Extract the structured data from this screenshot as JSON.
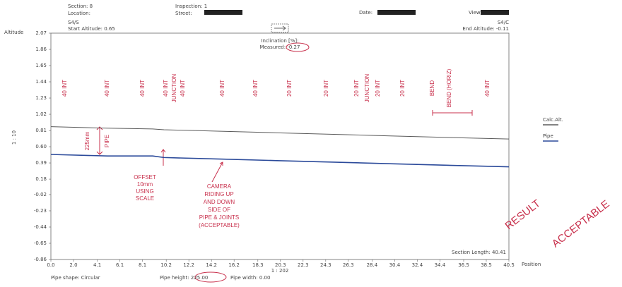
{
  "chart_data": {
    "type": "line",
    "header": {
      "section": "Section: 8",
      "location": "Location:",
      "inspection": "Inspection: 1",
      "street": "Street:",
      "date": "Date:",
      "view": "View:"
    },
    "start_node": "S4/S",
    "start_altitude": "Start Altitude: 0.65",
    "end_node": "S4/C",
    "end_altitude": "End Altitude: -0.11",
    "inclination_label": "Inclination [%]:",
    "measured": "Measured: -0.27",
    "y_label": "Altitude",
    "scale_label": "1 : 10",
    "x_label": "Position",
    "x_scale": "1 : 202",
    "section_length": "Section Length: 40.41",
    "footer": {
      "shape": "Pipe shape: Circular",
      "height": "Pipe height: 225.00",
      "width": "Pipe width: 0.00"
    },
    "x": [
      0,
      5,
      9,
      10,
      15,
      20,
      25,
      30,
      35,
      40.5
    ],
    "series": [
      {
        "name": "Calc.Alt.",
        "color": "#5a5a5a",
        "values": [
          0.86,
          0.84,
          0.83,
          0.82,
          0.8,
          0.78,
          0.76,
          0.74,
          0.72,
          0.7
        ]
      },
      {
        "name": "Pipe",
        "color": "#2b4a9a",
        "values": [
          0.5,
          0.48,
          0.48,
          0.46,
          0.44,
          0.42,
          0.4,
          0.38,
          0.36,
          0.34
        ]
      }
    ],
    "xlim": [
      0,
      40.5
    ],
    "xticks": [
      {
        "value": 0,
        "label": "0.0"
      },
      {
        "value": 2,
        "label": "2.0"
      },
      4.1,
      6.1,
      8.1,
      10.2,
      12.2,
      14.2,
      16.2,
      18.3,
      20.3,
      22.3,
      24.3,
      26.3,
      28.4,
      30.4,
      32.4,
      34.4,
      36.5,
      38.5,
      40.5
    ],
    "ylim": [
      -0.86,
      2.07
    ],
    "yticks": [
      2.07,
      1.86,
      1.65,
      1.44,
      1.23,
      1.02,
      0.81,
      {
        "value": 0.6,
        "label": "0.60"
      },
      0.39,
      0.18,
      -0.02,
      -0.23,
      -0.44,
      -0.65,
      -0.86
    ],
    "grid": false,
    "legend": "right",
    "vertical_notes": [
      "40 INT",
      "40 INT",
      "40 INT",
      "40 INT",
      "JUNCTION",
      "40 INT",
      "40 INT",
      "40 INT",
      "20 INT",
      "20 INT",
      "20 INT",
      "JUNCTION",
      "20 INT",
      "20 INT",
      "BEND",
      "BEND (HORIZ)",
      "40 INT"
    ],
    "notes": {
      "depth": "225mm",
      "pipe": "PIPE",
      "offset": [
        "OFFSET",
        "10mm",
        "USING",
        "SCALE"
      ],
      "camera": [
        "CAMERA",
        "RIDING UP",
        "AND DOWN",
        "SIDE OF",
        "PIPE & JOINTS",
        "(ACCEPTABLE)"
      ],
      "result": "RESULT",
      "acceptable": "ACCEPTABLE"
    }
  }
}
